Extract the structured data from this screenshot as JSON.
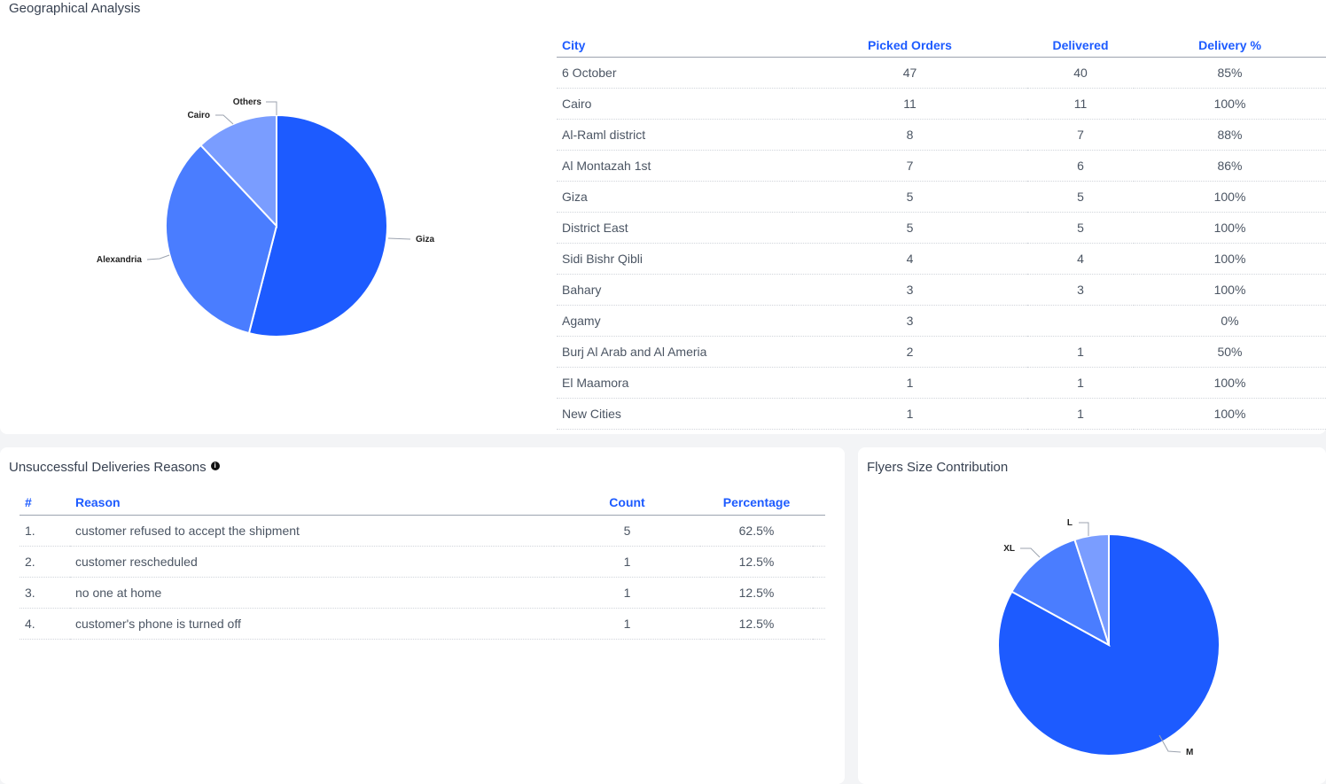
{
  "geo": {
    "title": "Geographical Analysis",
    "headers": [
      "City",
      "Picked Orders",
      "Delivered",
      "Delivery %"
    ],
    "rows": [
      [
        "6 October",
        "47",
        "40",
        "85%"
      ],
      [
        "Cairo",
        "11",
        "11",
        "100%"
      ],
      [
        "Al-Raml district",
        "8",
        "7",
        "88%"
      ],
      [
        "Al Montazah 1st",
        "7",
        "6",
        "86%"
      ],
      [
        "Giza",
        "5",
        "5",
        "100%"
      ],
      [
        "District East",
        "5",
        "5",
        "100%"
      ],
      [
        "Sidi Bishr Qibli",
        "4",
        "4",
        "100%"
      ],
      [
        "Bahary",
        "3",
        "3",
        "100%"
      ],
      [
        "Agamy",
        "3",
        "",
        "0%"
      ],
      [
        "Burj Al Arab and Al Ameria",
        "2",
        "1",
        "50%"
      ],
      [
        "El Maamora",
        "1",
        "1",
        "100%"
      ],
      [
        "New Cities",
        "1",
        "1",
        "100%"
      ]
    ]
  },
  "reasons": {
    "title": "Unsuccessful Deliveries Reasons",
    "info_icon": "info-icon",
    "headers": [
      "#",
      "Reason",
      "Count",
      "Percentage"
    ],
    "rows": [
      [
        "1.",
        "customer refused to accept the shipment",
        "5",
        "62.5%"
      ],
      [
        "2.",
        "customer rescheduled",
        "1",
        "12.5%"
      ],
      [
        "3.",
        "no one at home",
        "1",
        "12.5%"
      ],
      [
        "4.",
        "customer's phone is turned off",
        "1",
        "12.5%"
      ]
    ]
  },
  "flyers": {
    "title": "Flyers Size Contribution"
  },
  "colors": {
    "accent": "#1d5bff",
    "slice_1": "#1d5bff",
    "slice_2": "#4a7dff",
    "slice_3": "#7a9dff",
    "slice_4": "#9db7ff"
  },
  "chart_data": [
    {
      "type": "pie",
      "labels": [
        "Giza",
        "Alexandria",
        "Cairo",
        "Others"
      ],
      "values": [
        54,
        34,
        12,
        0
      ]
    },
    {
      "type": "pie",
      "labels": [
        "M",
        "XL",
        "L"
      ],
      "values": [
        83,
        12,
        5
      ]
    }
  ]
}
